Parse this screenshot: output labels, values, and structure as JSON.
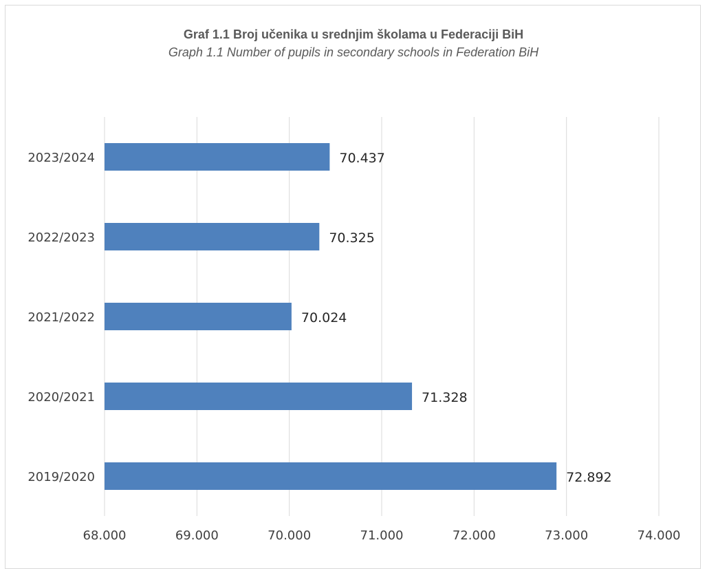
{
  "chart_data": {
    "type": "bar",
    "orientation": "horizontal",
    "title": "Graf 1.1 Broj učenika u srednjim školama u Federaciji BiH",
    "subtitle": "Graph 1.1 Number of pupils in secondary schools in Federation BiH",
    "categories": [
      "2023/2024",
      "2022/2023",
      "2021/2022",
      "2020/2021",
      "2019/2020"
    ],
    "values": [
      70437,
      70325,
      70024,
      71328,
      72892
    ],
    "data_labels": [
      "70.437",
      "70.325",
      "70.024",
      "71.328",
      "72.892"
    ],
    "xlim": [
      68000,
      74000
    ],
    "x_ticks": [
      68000,
      69000,
      70000,
      71000,
      72000,
      73000,
      74000
    ],
    "x_tick_labels": [
      "68.000",
      "69.000",
      "70.000",
      "71.000",
      "72.000",
      "73.000",
      "74.000"
    ],
    "grid": true,
    "legend": "none",
    "bar_color": "#4f81bd",
    "grid_color": "#d9d9d9"
  }
}
